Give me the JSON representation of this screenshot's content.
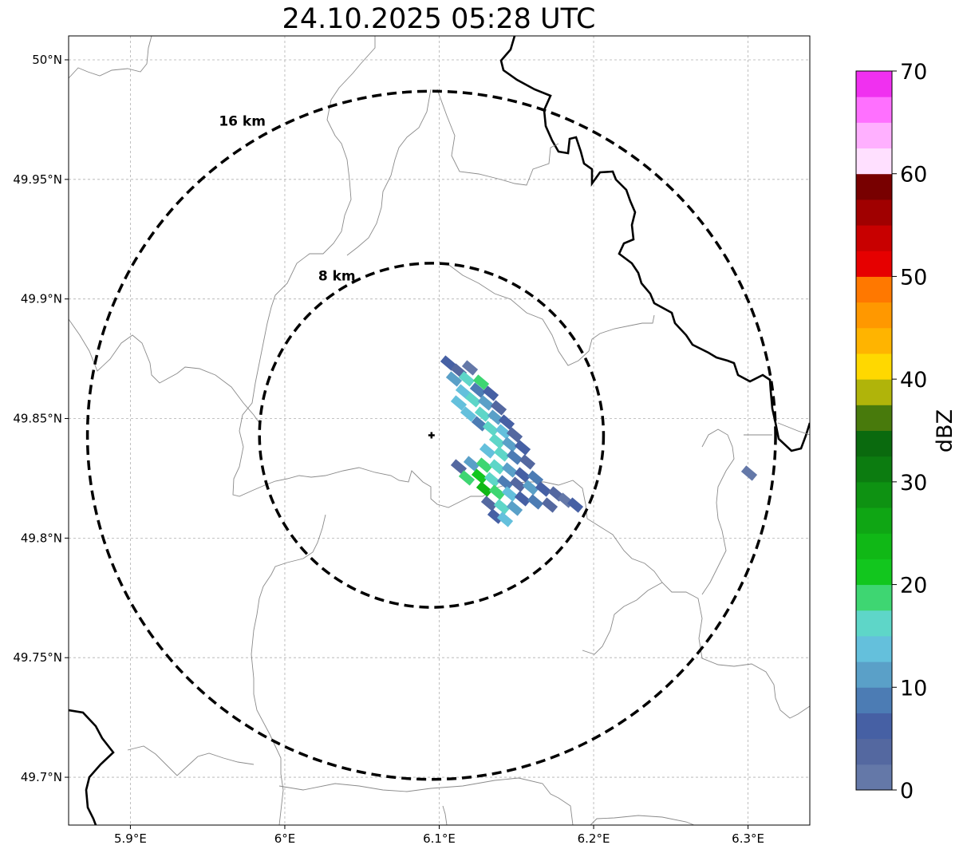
{
  "title": "24.10.2025 05:28 UTC",
  "map": {
    "lon_range": [
      5.86,
      6.34
    ],
    "lat_range": [
      49.68,
      50.01
    ],
    "radar_site": {
      "lon": 6.095,
      "lat": 49.843
    },
    "x_ticks": [
      {
        "value": 5.9,
        "label": "5.9°E"
      },
      {
        "value": 6.0,
        "label": "6°E"
      },
      {
        "value": 6.1,
        "label": "6.1°E"
      },
      {
        "value": 6.2,
        "label": "6.2°E"
      },
      {
        "value": 6.3,
        "label": "6.3°E"
      }
    ],
    "y_ticks": [
      {
        "value": 50.0,
        "label": "50°N"
      },
      {
        "value": 49.95,
        "label": "49.95°N"
      },
      {
        "value": 49.9,
        "label": "49.9°N"
      },
      {
        "value": 49.85,
        "label": "49.85°N"
      },
      {
        "value": 49.8,
        "label": "49.8°N"
      },
      {
        "value": 49.75,
        "label": "49.75°N"
      },
      {
        "value": 49.7,
        "label": "49.7°N"
      }
    ],
    "range_rings": [
      {
        "radius_km": 16,
        "label": "16 km"
      },
      {
        "radius_km": 8,
        "label": "8 km"
      }
    ]
  },
  "colorbar": {
    "label": "dBZ",
    "ticks": [
      "0",
      "10",
      "20",
      "30",
      "40",
      "50",
      "60",
      "70"
    ],
    "colors": [
      "#6478a8",
      "#5468a0",
      "#4660a4",
      "#4c7cb4",
      "#5aa0c8",
      "#64c0dc",
      "#5ed6c8",
      "#3ed672",
      "#12c61e",
      "#10b816",
      "#0fa614",
      "#0e9212",
      "#0c7c10",
      "#0a6a0e",
      "#487a0c",
      "#b0b40a",
      "#ffd800",
      "#ffb400",
      "#ff9800",
      "#ff7800",
      "#e60000",
      "#c80000",
      "#a00000",
      "#780000",
      "#ffe0ff",
      "#ffb0ff",
      "#ff70ff",
      "#f030f0"
    ]
  }
}
